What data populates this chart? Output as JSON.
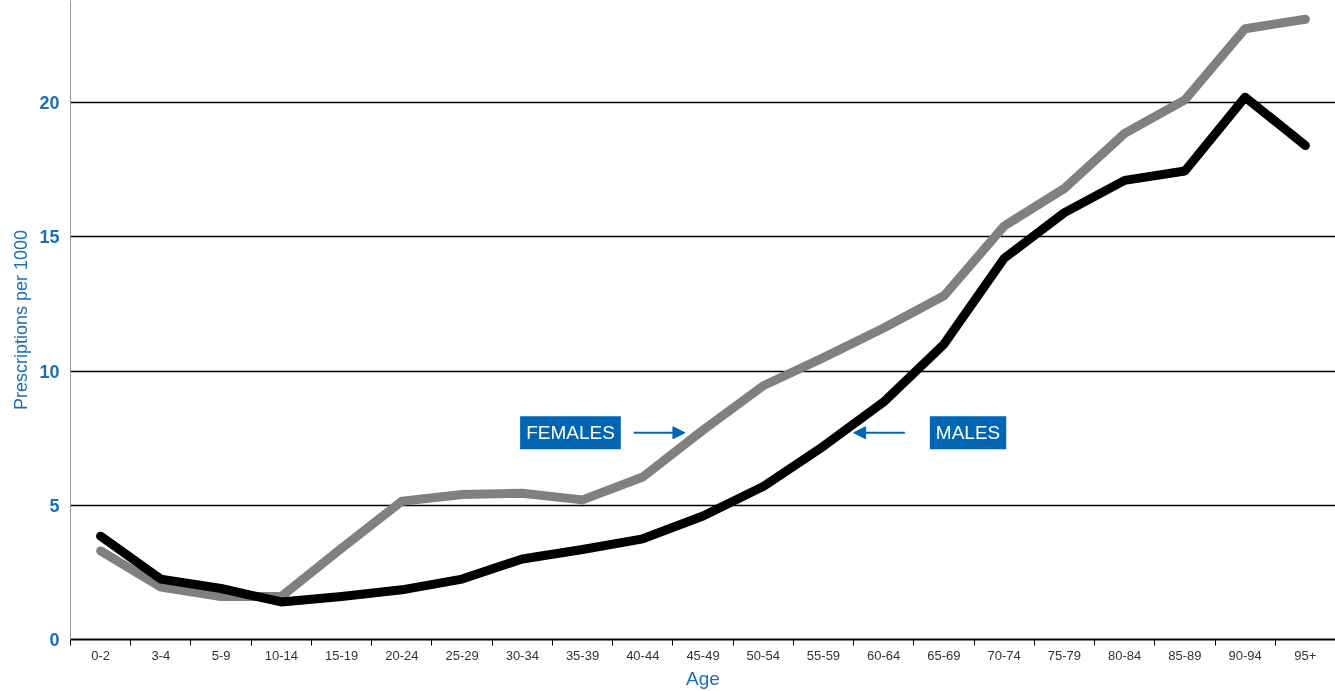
{
  "chart_data": {
    "type": "line",
    "xlabel": "Age",
    "ylabel": "Prescriptions per 1000",
    "categories": [
      "0-2",
      "3-4",
      "5-9",
      "10-14",
      "15-19",
      "20-24",
      "25-29",
      "30-34",
      "35-39",
      "40-44",
      "45-49",
      "50-54",
      "55-59",
      "60-64",
      "65-69",
      "70-74",
      "75-79",
      "80-84",
      "85-89",
      "90-94",
      "95+"
    ],
    "series": [
      {
        "name": "FEMALES",
        "color": "#808080",
        "values": [
          3.3,
          1.95,
          1.6,
          1.6,
          3.4,
          5.15,
          5.4,
          5.45,
          5.2,
          6.05,
          7.8,
          9.45,
          10.5,
          11.6,
          12.8,
          15.4,
          16.8,
          18.85,
          20.1,
          22.75,
          23.1
        ]
      },
      {
        "name": "MALES",
        "color": "#000000",
        "values": [
          3.85,
          2.25,
          1.9,
          1.4,
          1.6,
          1.85,
          2.25,
          3.0,
          3.35,
          3.75,
          4.6,
          5.7,
          7.2,
          8.85,
          11.0,
          14.2,
          15.9,
          17.1,
          17.45,
          20.2,
          18.4
        ]
      }
    ],
    "ylim": [
      0,
      23.8
    ],
    "yticks": [
      0,
      5,
      10,
      15,
      20
    ],
    "grid": "y",
    "legend": false,
    "marker": "none",
    "line_style": "solid"
  }
}
